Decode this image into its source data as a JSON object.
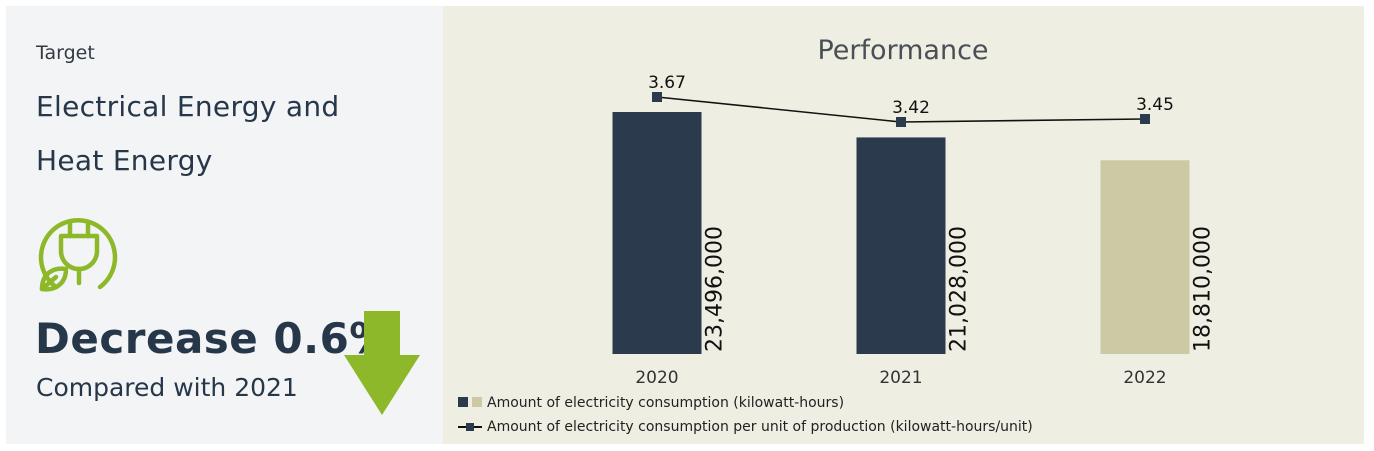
{
  "left": {
    "label": "Target",
    "title_line1": "Electrical Energy and",
    "title_line2": "Heat Energy",
    "icon": "eco-power-plug-icon",
    "result": "Decrease 0.6%",
    "comparison": "Compared with 2021",
    "arrow_icon": "down-arrow-icon",
    "colors": {
      "accent": "#8cb82a",
      "text": "#27374a"
    }
  },
  "chart_data": {
    "type": "bar",
    "title": "Performance",
    "categories": [
      "2020",
      "2021",
      "2022"
    ],
    "series": [
      {
        "name": "Amount of electricity consumption (kilowatt-hours)",
        "type": "bar",
        "values": [
          23496000,
          21028000,
          18810000
        ],
        "labels": [
          "23,496,000",
          "21,028,000",
          "18,810,000"
        ],
        "colors": [
          "#2b3a4d",
          "#2b3a4d",
          "#cbcaa4"
        ]
      },
      {
        "name": "Amount of electricity consumption per unit of production (kilowatt-hours/unit)",
        "type": "line",
        "values": [
          3.67,
          3.42,
          3.45
        ],
        "labels": [
          "3.67",
          "3.42",
          "3.45"
        ],
        "color": "#2b3a4d"
      }
    ],
    "legend_position": "bottom-left",
    "grid": false
  }
}
